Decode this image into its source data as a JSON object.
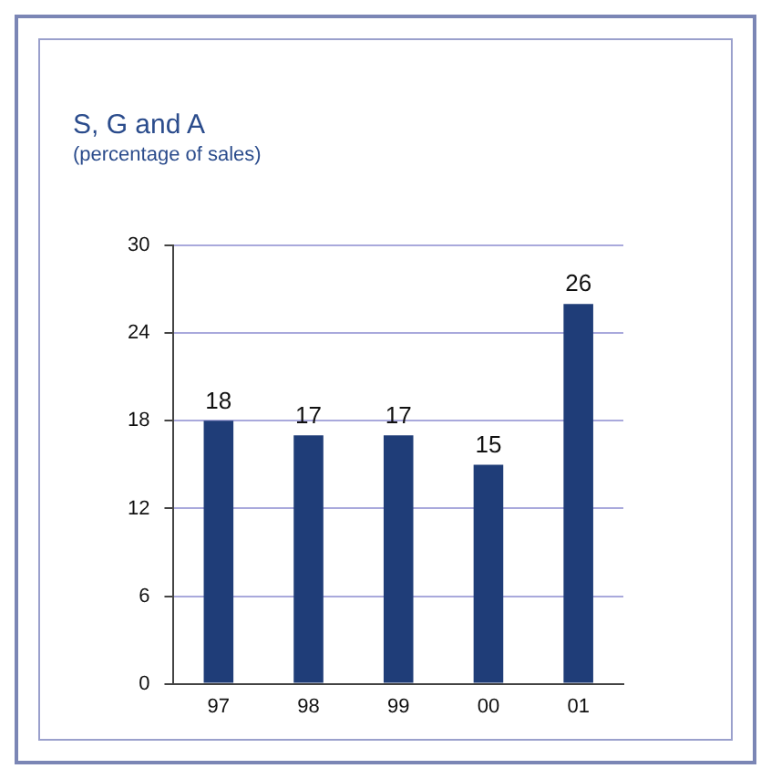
{
  "chart_data": {
    "type": "bar",
    "title": "S, G and A",
    "subtitle": "(percentage of sales)",
    "categories": [
      "97",
      "98",
      "99",
      "00",
      "01"
    ],
    "values": [
      18,
      17,
      17,
      15,
      26
    ],
    "color": "#1f3d78",
    "ylim": [
      0,
      30
    ],
    "yticks": [
      0,
      6,
      12,
      18,
      24,
      30
    ],
    "grid": "y",
    "data_labels": true
  }
}
